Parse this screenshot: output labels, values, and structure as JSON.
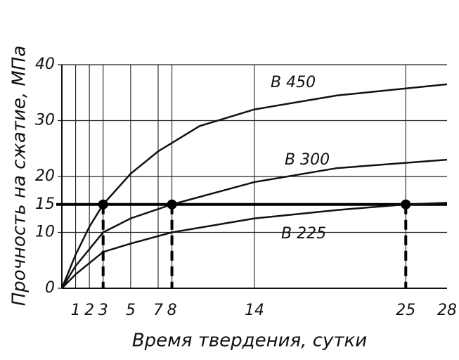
{
  "chart_data": {
    "type": "line",
    "x_label": "Время твердения, сутки",
    "y_label": "Прочность на сжатие, МПа",
    "xlim": [
      0,
      28
    ],
    "ylim": [
      0,
      40
    ],
    "xticks": [
      1,
      2,
      3,
      5,
      7,
      8,
      14,
      25,
      28
    ],
    "yticks": [
      0,
      10,
      15,
      20,
      30,
      40
    ],
    "grid": true,
    "series": [
      {
        "name": "В 450",
        "color": "#111111",
        "x": [
          0,
          1,
          2,
          3,
          5,
          7,
          8,
          10,
          14,
          20,
          28
        ],
        "values": [
          0,
          6,
          11,
          15,
          20.5,
          24.5,
          26,
          29,
          32,
          34.5,
          36.5
        ]
      },
      {
        "name": "В 300",
        "color": "#111111",
        "x": [
          0,
          1,
          3,
          5,
          8,
          14,
          20,
          28
        ],
        "values": [
          0,
          4,
          10,
          12.5,
          15,
          19,
          21.5,
          23
        ]
      },
      {
        "name": "В 225",
        "color": "#111111",
        "x": [
          0,
          1,
          3,
          5,
          8,
          14,
          20,
          25,
          28
        ],
        "values": [
          0,
          2.5,
          6.5,
          8,
          10,
          12.5,
          14,
          15,
          15.3
        ]
      }
    ],
    "reference_line": 15,
    "points": {
      "x": [
        3,
        8,
        25
      ],
      "values": [
        15,
        15,
        15
      ]
    }
  }
}
